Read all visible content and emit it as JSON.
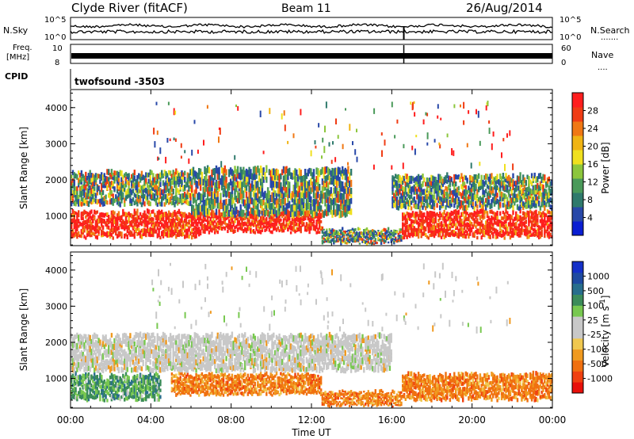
{
  "header": {
    "station": "Clyde River (fitACF)",
    "beam": "Beam 11",
    "date": "26/Aug/2014"
  },
  "sky_panel": {
    "left_label": "N.Sky",
    "right_label": "N.Search",
    "right_dots": ".......",
    "ticks_left": [
      "10^5",
      "10^0"
    ],
    "ticks_right": [
      "10^5",
      "10^0"
    ]
  },
  "freq_panel": {
    "left_label_line1": "Freq.",
    "left_label_line2": "[MHz]",
    "ticks_left": [
      "10",
      "8"
    ],
    "ticks_right": [
      "60",
      "0"
    ],
    "right_label": "Nave",
    "right_dots": "....",
    "cpid_label": "CPID",
    "cpid_value": "twofsound -3503"
  },
  "colors": {
    "power_scale": [
      "#0a1ed2",
      "#2848a8",
      "#2f7a6c",
      "#4a9a5a",
      "#8cc63c",
      "#f0e01e",
      "#f0b414",
      "#f07814",
      "#f03c14",
      "#ff1e1e"
    ],
    "velocity_scale": [
      "#e8100a",
      "#f04010",
      "#f07010",
      "#f09a20",
      "#f0c850",
      "#c8c8c8",
      "#c8c8c8",
      "#78c850",
      "#3c8c5a",
      "#286e8c",
      "#1e4aa0",
      "#1430c8"
    ],
    "frame": "#000000"
  },
  "chart_data": [
    {
      "type": "heatmap",
      "name": "power",
      "ylabel": "Slant Range [km]",
      "yticks": [
        "4000",
        "3000",
        "2000",
        "1000"
      ],
      "ylim": [
        180,
        4500
      ],
      "xlim": [
        0,
        24
      ],
      "colorbar": {
        "label": "Power [dB]",
        "ticks": [
          "28",
          "24",
          "20",
          "16",
          "12",
          "8",
          "4"
        ],
        "range": [
          0,
          30
        ]
      },
      "bands": [
        {
          "t": [
            0,
            6.5
          ],
          "range": [
            400,
            1100
          ],
          "level": "strong"
        },
        {
          "t": [
            6.5,
            12.5
          ],
          "range": [
            550,
            1100
          ],
          "level": "strong"
        },
        {
          "t": [
            0,
            6
          ],
          "range": [
            1300,
            2200
          ],
          "level": "medium"
        },
        {
          "t": [
            6,
            14
          ],
          "range": [
            1000,
            2300
          ],
          "level": "medium"
        },
        {
          "t": [
            12.5,
            16.5
          ],
          "range": [
            250,
            600
          ],
          "level": "medium"
        },
        {
          "t": [
            16.5,
            24
          ],
          "range": [
            400,
            1100
          ],
          "level": "strong"
        },
        {
          "t": [
            16,
            24
          ],
          "range": [
            1200,
            2100
          ],
          "level": "medium"
        }
      ]
    },
    {
      "type": "heatmap",
      "name": "velocity",
      "ylabel": "Slant Range [km]",
      "yticks": [
        "4000",
        "3000",
        "2000",
        "1000"
      ],
      "ylim": [
        180,
        4500
      ],
      "xlim": [
        0,
        24
      ],
      "xticks": [
        "00:00",
        "04:00",
        "08:00",
        "12:00",
        "16:00",
        "20:00",
        "00:00"
      ],
      "xlabel": "Time UT",
      "colorbar": {
        "label": "Velocity [m s^-1]",
        "ticks": [
          "1000",
          "500",
          "100",
          "25",
          "-25",
          "-100",
          "-500",
          "-1000"
        ]
      },
      "bands": [
        {
          "t": [
            0,
            4.5
          ],
          "range": [
            400,
            1100
          ],
          "level": "positive"
        },
        {
          "t": [
            5,
            12.5
          ],
          "range": [
            550,
            1100
          ],
          "level": "negative"
        },
        {
          "t": [
            0,
            16
          ],
          "range": [
            1200,
            2200
          ],
          "level": "near-zero"
        },
        {
          "t": [
            12.5,
            16.5
          ],
          "range": [
            250,
            600
          ],
          "level": "negative"
        },
        {
          "t": [
            16.5,
            24
          ],
          "range": [
            400,
            1100
          ],
          "level": "negative"
        }
      ]
    }
  ]
}
